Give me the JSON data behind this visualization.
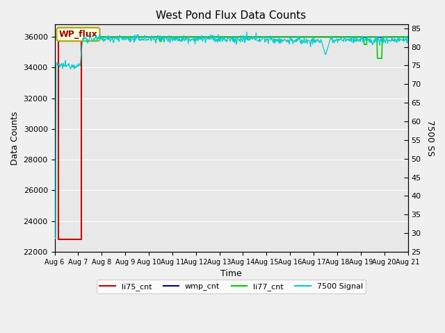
{
  "title": "West Pond Flux Data Counts",
  "xlabel": "Time",
  "ylabel_left": "Data Counts",
  "ylabel_right": "7500 SS",
  "ylim_left": [
    22000,
    36800
  ],
  "ylim_right": [
    25,
    86
  ],
  "yticks_left": [
    22000,
    24000,
    26000,
    28000,
    30000,
    32000,
    34000,
    36000
  ],
  "yticks_right": [
    25,
    30,
    35,
    40,
    45,
    50,
    55,
    60,
    65,
    70,
    75,
    80,
    85
  ],
  "xtick_labels": [
    "Aug 6",
    "Aug 7",
    "Aug 8",
    "Aug 9",
    "Aug 10",
    "Aug 11",
    "Aug 12",
    "Aug 13",
    "Aug 14",
    "Aug 15",
    "Aug 16",
    "Aug 17",
    "Aug 18",
    "Aug 19",
    "Aug 20",
    "Aug 21"
  ],
  "bg_color": "#e8e8e8",
  "plot_bg_color": "#e8e8e8",
  "fig_bg_color": "#f0f0f0",
  "grid_color": "#ffffff",
  "annotation_text": "WP_flux",
  "colors": {
    "li75_cnt": "#cc0000",
    "wmp_cnt": "#000099",
    "li77_cnt": "#00cc00",
    "signal_7500": "#00cccc"
  },
  "legend_labels": [
    "li75_cnt",
    "wmp_cnt",
    "li77_cnt",
    "7500 Signal"
  ],
  "n_days": 15,
  "xlim": [
    0,
    15
  ],
  "figsize": [
    6.4,
    4.8
  ],
  "dpi": 100
}
